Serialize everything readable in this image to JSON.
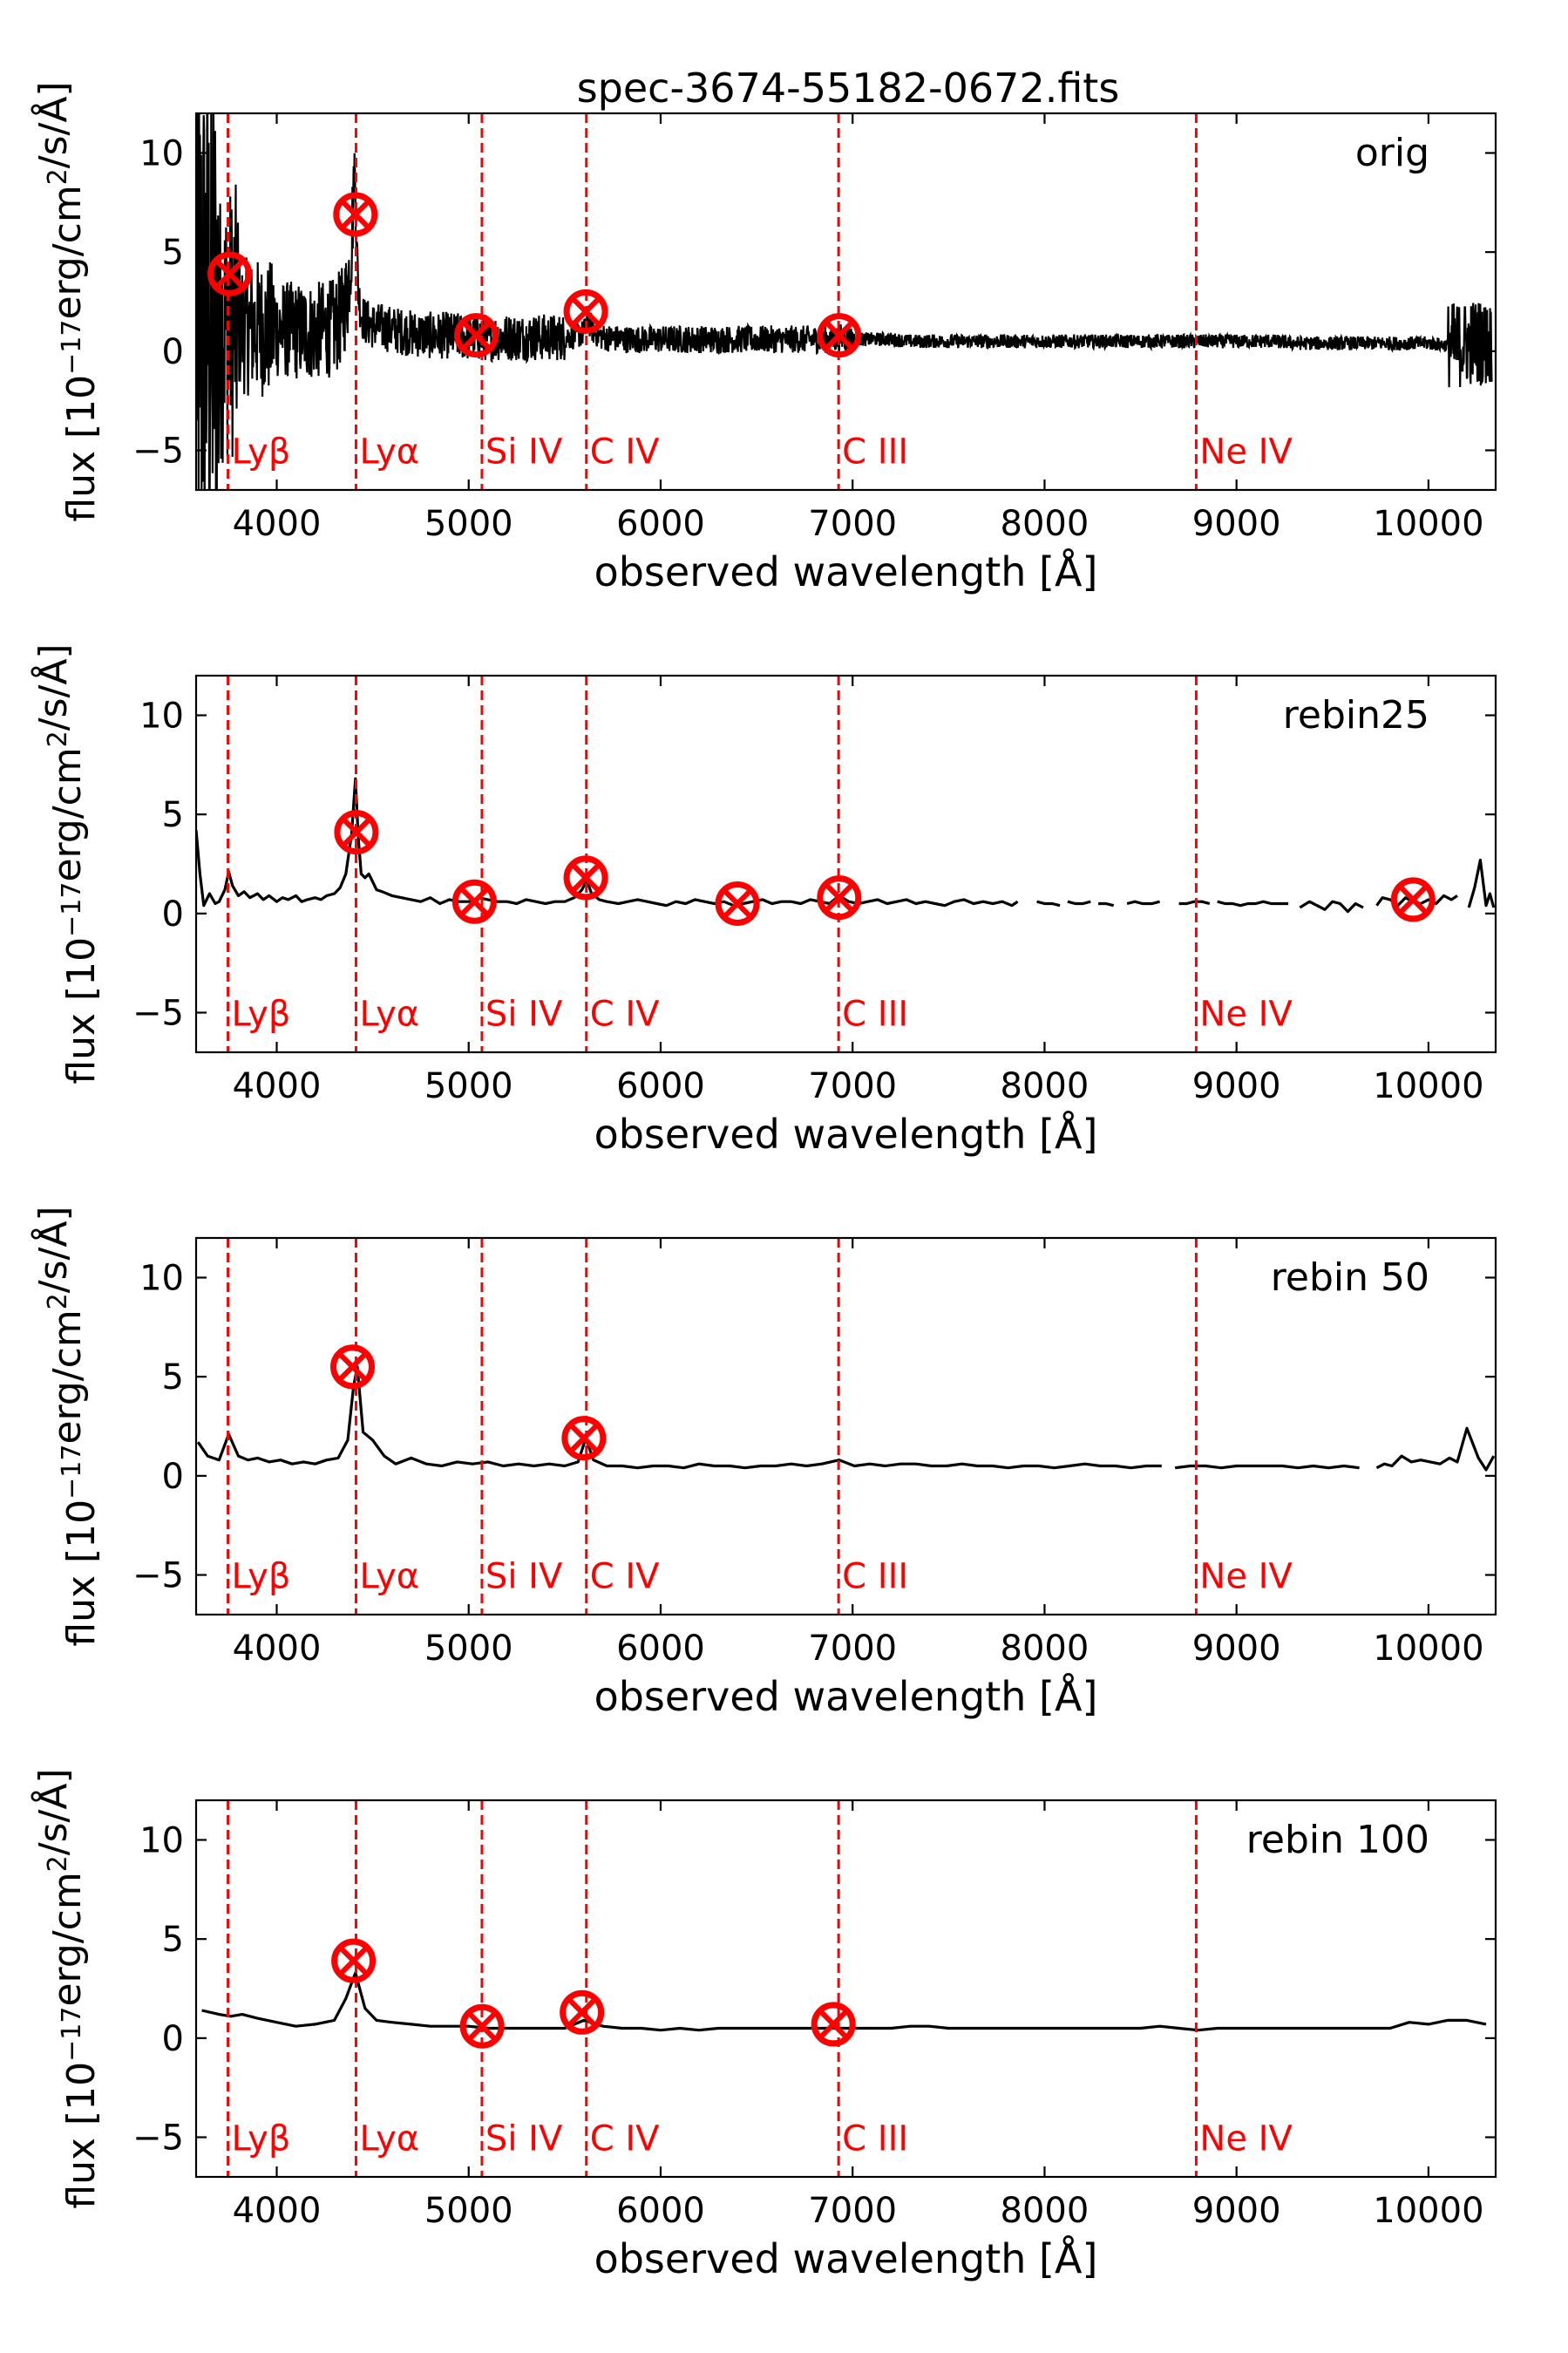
{
  "figure": {
    "title": "spec-3674-55182-0672.fits"
  },
  "colors": {
    "spectrum": "#000000",
    "line_marker": "#ff0000",
    "detection": "#ff0000"
  },
  "chart_data": [
    {
      "type": "line",
      "panel_label": "orig",
      "xlabel": "observed wavelength [Å]",
      "ylabel": "flux [10^-17 erg/cm^2/s/Å]",
      "xlim": [
        3580,
        10350
      ],
      "ylim": [
        -7,
        12
      ],
      "xticks": [
        4000,
        5000,
        6000,
        7000,
        8000,
        9000,
        10000
      ],
      "yticks": [
        -5,
        0,
        5,
        10
      ],
      "grid": false,
      "noisy": true,
      "spectrum": {
        "x": [
          3580,
          3620,
          3660,
          3700,
          3740,
          3780,
          3820,
          3860,
          3900,
          3950,
          4000,
          4050,
          4100,
          4150,
          4200,
          4250,
          4300,
          4340,
          4370,
          4390,
          4405,
          4415,
          4425,
          4440,
          4460,
          4500,
          4550,
          4600,
          4700,
          4800,
          4900,
          5000,
          5100,
          5200,
          5300,
          5400,
          5500,
          5600,
          5620,
          5650,
          5700,
          5800,
          5900,
          6000,
          6100,
          6200,
          6300,
          6400,
          6500,
          6600,
          6700,
          6800,
          6900,
          6950,
          7000,
          7100,
          7200,
          7300,
          7400,
          7500,
          7600,
          7700,
          7800,
          7900,
          8000,
          8100,
          8200,
          8300,
          8400,
          8500,
          8600,
          8700,
          8800,
          8900,
          9000,
          9100,
          9200,
          9300,
          9400,
          9500,
          9600,
          9700,
          9800,
          9900,
          10000,
          10100,
          10150,
          10200,
          10250,
          10300,
          10330
        ],
        "y": [
          2.0,
          1.5,
          1.6,
          1.2,
          1.4,
          1.5,
          1.3,
          1.2,
          1.2,
          1.1,
          1.1,
          1.1,
          1.0,
          1.0,
          1.0,
          1.1,
          1.2,
          1.8,
          3.0,
          5.5,
          9.5,
          6.0,
          3.0,
          1.9,
          1.5,
          1.3,
          1.2,
          1.1,
          0.9,
          0.8,
          0.8,
          0.7,
          0.7,
          0.7,
          0.7,
          0.7,
          0.7,
          0.9,
          1.6,
          1.0,
          0.7,
          0.6,
          0.6,
          0.6,
          0.6,
          0.6,
          0.6,
          0.6,
          0.6,
          0.6,
          0.6,
          0.6,
          0.6,
          0.7,
          0.6,
          0.6,
          0.6,
          0.5,
          0.5,
          0.5,
          0.5,
          0.5,
          0.5,
          0.5,
          0.5,
          0.5,
          0.5,
          0.5,
          0.5,
          0.5,
          0.5,
          0.5,
          0.5,
          0.5,
          0.5,
          0.5,
          0.5,
          0.4,
          0.4,
          0.4,
          0.4,
          0.4,
          0.4,
          0.4,
          0.4,
          0.3,
          0.3,
          0.4,
          0.5,
          0.4,
          0.4
        ]
      },
      "ref_lines": [
        {
          "label": "Lyβ",
          "x": 3746
        },
        {
          "label": "Lyα",
          "x": 4413
        },
        {
          "label": "Si IV",
          "x": 5069
        },
        {
          "label": "C IV",
          "x": 5613
        },
        {
          "label": "C III",
          "x": 6927
        },
        {
          "label": "Ne IV",
          "x": 8790
        }
      ],
      "detections": [
        {
          "x": 3755,
          "y": 3.9
        },
        {
          "x": 4410,
          "y": 6.9
        },
        {
          "x": 5040,
          "y": 0.8
        },
        {
          "x": 5610,
          "y": 2.0
        },
        {
          "x": 6930,
          "y": 0.8
        }
      ]
    },
    {
      "type": "line",
      "panel_label": "rebin25",
      "xlabel": "observed wavelength [Å]",
      "ylabel": "flux [10^-17 erg/cm^2/s/Å]",
      "xlim": [
        3580,
        10350
      ],
      "ylim": [
        -7,
        12
      ],
      "xticks": [
        4000,
        5000,
        6000,
        7000,
        8000,
        9000,
        10000
      ],
      "yticks": [
        -5,
        0,
        5,
        10
      ],
      "grid": false,
      "noisy": false,
      "spectrum": {
        "x": [
          3580,
          3600,
          3620,
          3650,
          3680,
          3700,
          3730,
          3750,
          3770,
          3800,
          3830,
          3860,
          3900,
          3930,
          3960,
          4000,
          4030,
          4060,
          4100,
          4130,
          4160,
          4200,
          4230,
          4260,
          4300,
          4330,
          4360,
          4390,
          4410,
          4425,
          4440,
          4460,
          4480,
          4500,
          4520,
          4550,
          4600,
          4650,
          4700,
          4750,
          4800,
          4850,
          4900,
          4950,
          5000,
          5050,
          5100,
          5150,
          5200,
          5250,
          5300,
          5350,
          5400,
          5450,
          5500,
          5550,
          5590,
          5615,
          5640,
          5680,
          5720,
          5780,
          5830,
          5880,
          5930,
          5980,
          6030,
          6080,
          6130,
          6180,
          6230,
          6280,
          6330,
          6380,
          6430,
          6480,
          6530,
          6580,
          6630,
          6680,
          6730,
          6780,
          6830,
          6880,
          6930,
          6980,
          7030,
          7080,
          7130,
          7180,
          7230,
          7280,
          7330,
          7380,
          7430,
          7480,
          7530,
          7580,
          7630,
          7680,
          7730,
          7780,
          7830,
          7860,
          null,
          7960,
          8000,
          8040,
          8080,
          null,
          8120,
          8160,
          8200,
          8240,
          null,
          8280,
          8320,
          8360,
          null,
          8430,
          8470,
          8510,
          8560,
          8600,
          null,
          8700,
          8740,
          8780,
          8820,
          8860,
          null,
          8900,
          8940,
          8980,
          9020,
          9060,
          9100,
          9140,
          9180,
          9230,
          9270,
          null,
          9330,
          9380,
          9420,
          9460,
          9500,
          9540,
          9580,
          9620,
          9660,
          null,
          9730,
          9760,
          9800,
          9840,
          9880,
          9920,
          9960,
          10000,
          10040,
          10080,
          10120,
          10150,
          null,
          10210,
          10240,
          10270,
          10300,
          10320,
          10340
        ],
        "y": [
          4.2,
          2.0,
          0.4,
          1.0,
          0.5,
          0.6,
          1.2,
          2.1,
          1.4,
          0.9,
          1.1,
          0.8,
          1.0,
          0.7,
          0.9,
          0.6,
          0.8,
          0.7,
          0.9,
          0.6,
          0.7,
          0.8,
          0.7,
          0.9,
          1.0,
          1.3,
          2.0,
          4.0,
          6.8,
          3.8,
          2.0,
          1.8,
          2.0,
          1.6,
          1.2,
          1.1,
          0.9,
          0.8,
          0.7,
          0.6,
          0.8,
          0.5,
          0.7,
          0.6,
          0.6,
          0.8,
          0.7,
          0.6,
          0.6,
          0.5,
          0.7,
          0.6,
          0.5,
          0.6,
          0.6,
          0.8,
          1.2,
          1.7,
          1.0,
          0.7,
          0.6,
          0.5,
          0.6,
          0.7,
          0.6,
          0.5,
          0.4,
          0.6,
          0.5,
          0.7,
          0.6,
          0.5,
          0.6,
          0.4,
          0.5,
          0.6,
          0.7,
          0.5,
          0.6,
          0.6,
          0.5,
          0.7,
          0.6,
          0.5,
          0.9,
          0.6,
          0.5,
          0.6,
          0.7,
          0.5,
          0.6,
          0.7,
          0.5,
          0.6,
          0.5,
          0.4,
          0.6,
          0.7,
          0.5,
          0.6,
          0.5,
          0.6,
          0.4,
          0.6,
          null,
          0.6,
          0.5,
          0.5,
          0.4,
          null,
          0.6,
          0.5,
          0.5,
          0.6,
          null,
          0.5,
          0.5,
          0.4,
          null,
          0.5,
          0.6,
          0.5,
          0.5,
          0.6,
          null,
          0.5,
          0.5,
          0.6,
          0.6,
          0.5,
          null,
          0.6,
          0.5,
          0.5,
          0.4,
          0.5,
          0.5,
          0.6,
          0.5,
          0.5,
          0.5,
          null,
          0.3,
          0.6,
          0.4,
          0.2,
          0.6,
          0.5,
          0.1,
          0.5,
          0.3,
          null,
          0.4,
          0.8,
          0.7,
          0.4,
          0.8,
          0.6,
          0.5,
          0.7,
          0.5,
          0.9,
          0.7,
          0.9,
          null,
          0.3,
          1.3,
          2.7,
          0.4,
          1.0,
          0.3
        ],
        "break_x": [
          7860,
          7960,
          8080,
          8120,
          8240,
          8280,
          8360,
          8430,
          8600,
          8700,
          8860,
          8900,
          9270,
          9330,
          9660,
          9730,
          10150,
          10210
        ]
      },
      "ref_lines": [
        {
          "label": "Lyβ",
          "x": 3746
        },
        {
          "label": "Lyα",
          "x": 4413
        },
        {
          "label": "Si IV",
          "x": 5069
        },
        {
          "label": "C IV",
          "x": 5613
        },
        {
          "label": "C III",
          "x": 6927
        },
        {
          "label": "Ne IV",
          "x": 8790
        }
      ],
      "detections": [
        {
          "x": 4415,
          "y": 4.1
        },
        {
          "x": 5030,
          "y": 0.6
        },
        {
          "x": 5610,
          "y": 1.8
        },
        {
          "x": 6400,
          "y": 0.5
        },
        {
          "x": 6930,
          "y": 0.8
        },
        {
          "x": 9920,
          "y": 0.7
        }
      ]
    },
    {
      "type": "line",
      "panel_label": "rebin 50",
      "xlabel": "observed wavelength [Å]",
      "ylabel": "flux [10^-17 erg/cm^2/s/Å]",
      "xlim": [
        3580,
        10350
      ],
      "ylim": [
        -7,
        12
      ],
      "xticks": [
        4000,
        5000,
        6000,
        7000,
        8000,
        9000,
        10000
      ],
      "yticks": [
        -5,
        0,
        5,
        10
      ],
      "grid": false,
      "noisy": false,
      "spectrum": {
        "x": [
          3590,
          3640,
          3700,
          3750,
          3800,
          3850,
          3900,
          3960,
          4020,
          4080,
          4140,
          4200,
          4260,
          4320,
          4370,
          4400,
          4420,
          4450,
          4500,
          4560,
          4620,
          4700,
          4780,
          4860,
          4940,
          5020,
          5100,
          5180,
          5260,
          5340,
          5420,
          5500,
          5570,
          5610,
          5650,
          5720,
          5800,
          5880,
          5960,
          6040,
          6120,
          6200,
          6280,
          6360,
          6440,
          6520,
          6600,
          6680,
          6760,
          6840,
          6930,
          7010,
          7090,
          7170,
          7250,
          7330,
          7410,
          7490,
          7570,
          7650,
          7730,
          7810,
          7890,
          7970,
          8050,
          8130,
          8210,
          8290,
          8370,
          8450,
          8530,
          8610,
          null,
          8680,
          8760,
          8840,
          8920,
          9000,
          9080,
          9160,
          9240,
          9320,
          9400,
          9480,
          9560,
          9640,
          null,
          9730,
          9770,
          9810,
          9860,
          9910,
          9960,
          10010,
          10060,
          10110,
          10150,
          10200,
          10260,
          10300,
          10340
        ],
        "y": [
          1.7,
          1.0,
          0.8,
          2.1,
          1.0,
          0.8,
          0.9,
          0.7,
          0.8,
          0.6,
          0.7,
          0.6,
          0.8,
          0.9,
          1.8,
          4.5,
          5.5,
          2.2,
          1.8,
          1.0,
          0.6,
          0.9,
          0.6,
          0.5,
          0.7,
          0.6,
          0.7,
          0.5,
          0.6,
          0.5,
          0.6,
          0.5,
          0.7,
          1.9,
          0.8,
          0.5,
          0.5,
          0.4,
          0.5,
          0.5,
          0.4,
          0.6,
          0.5,
          0.5,
          0.4,
          0.5,
          0.5,
          0.6,
          0.5,
          0.6,
          0.8,
          0.5,
          0.6,
          0.5,
          0.6,
          0.6,
          0.5,
          0.5,
          0.6,
          0.5,
          0.5,
          0.4,
          0.5,
          0.5,
          0.4,
          0.5,
          0.6,
          0.5,
          0.5,
          0.4,
          0.5,
          0.5,
          null,
          0.4,
          0.5,
          0.5,
          0.4,
          0.5,
          0.5,
          0.5,
          0.5,
          0.4,
          0.5,
          0.4,
          0.5,
          0.4,
          null,
          0.4,
          0.6,
          0.5,
          1.0,
          0.7,
          0.8,
          0.7,
          0.6,
          0.9,
          0.7,
          2.4,
          0.9,
          0.3,
          1.0
        ],
        "break_x": [
          8610,
          8680,
          9640,
          9730
        ]
      },
      "ref_lines": [
        {
          "label": "Lyβ",
          "x": 3746
        },
        {
          "label": "Lyα",
          "x": 4413
        },
        {
          "label": "Si IV",
          "x": 5069
        },
        {
          "label": "C IV",
          "x": 5613
        },
        {
          "label": "C III",
          "x": 6927
        },
        {
          "label": "Ne IV",
          "x": 8790
        }
      ],
      "detections": [
        {
          "x": 4395,
          "y": 5.5
        },
        {
          "x": 5600,
          "y": 1.9
        }
      ]
    },
    {
      "type": "line",
      "panel_label": "rebin 100",
      "xlabel": "observed wavelength [Å]",
      "ylabel": "flux [10^-17 erg/cm^2/s/Å]",
      "xlim": [
        3580,
        10350
      ],
      "ylim": [
        -7,
        12
      ],
      "xticks": [
        4000,
        5000,
        6000,
        7000,
        8000,
        9000,
        10000
      ],
      "yticks": [
        -5,
        0,
        5,
        10
      ],
      "grid": false,
      "noisy": false,
      "spectrum": {
        "x": [
          3610,
          3700,
          3760,
          3820,
          3900,
          4000,
          4100,
          4200,
          4300,
          4360,
          4410,
          4460,
          4520,
          4600,
          4700,
          4800,
          4900,
          5000,
          5100,
          5200,
          5300,
          5400,
          5500,
          5600,
          5700,
          5800,
          5900,
          6000,
          6100,
          6200,
          6300,
          6400,
          6500,
          6600,
          6700,
          6800,
          6900,
          7000,
          7100,
          7200,
          7300,
          7400,
          7500,
          7600,
          7700,
          7800,
          7900,
          8000,
          8100,
          8200,
          8300,
          8400,
          8500,
          8600,
          8700,
          8800,
          8900,
          9000,
          9100,
          9200,
          9300,
          9400,
          9500,
          9600,
          9700,
          9800,
          9900,
          10000,
          10100,
          10200,
          10300
        ],
        "y": [
          1.4,
          1.2,
          1.1,
          1.2,
          1.0,
          0.8,
          0.6,
          0.7,
          0.9,
          2.0,
          3.3,
          1.5,
          0.9,
          0.8,
          0.7,
          0.6,
          0.6,
          0.6,
          0.5,
          0.5,
          0.5,
          0.5,
          0.5,
          0.9,
          0.6,
          0.5,
          0.5,
          0.4,
          0.5,
          0.4,
          0.5,
          0.5,
          0.5,
          0.5,
          0.5,
          0.5,
          0.5,
          0.5,
          0.5,
          0.5,
          0.6,
          0.6,
          0.5,
          0.5,
          0.5,
          0.5,
          0.5,
          0.5,
          0.5,
          0.5,
          0.5,
          0.5,
          0.5,
          0.6,
          0.5,
          0.4,
          0.5,
          0.5,
          0.5,
          0.5,
          0.5,
          0.5,
          0.5,
          0.5,
          0.5,
          0.5,
          0.8,
          0.7,
          0.9,
          0.9,
          0.7
        ]
      },
      "ref_lines": [
        {
          "label": "Lyβ",
          "x": 3746
        },
        {
          "label": "Lyα",
          "x": 4413
        },
        {
          "label": "Si IV",
          "x": 5069
        },
        {
          "label": "C IV",
          "x": 5613
        },
        {
          "label": "C III",
          "x": 6927
        },
        {
          "label": "Ne IV",
          "x": 8790
        }
      ],
      "detections": [
        {
          "x": 4400,
          "y": 3.9
        },
        {
          "x": 5070,
          "y": 0.6
        },
        {
          "x": 5590,
          "y": 1.3
        },
        {
          "x": 6900,
          "y": 0.7
        }
      ]
    }
  ]
}
